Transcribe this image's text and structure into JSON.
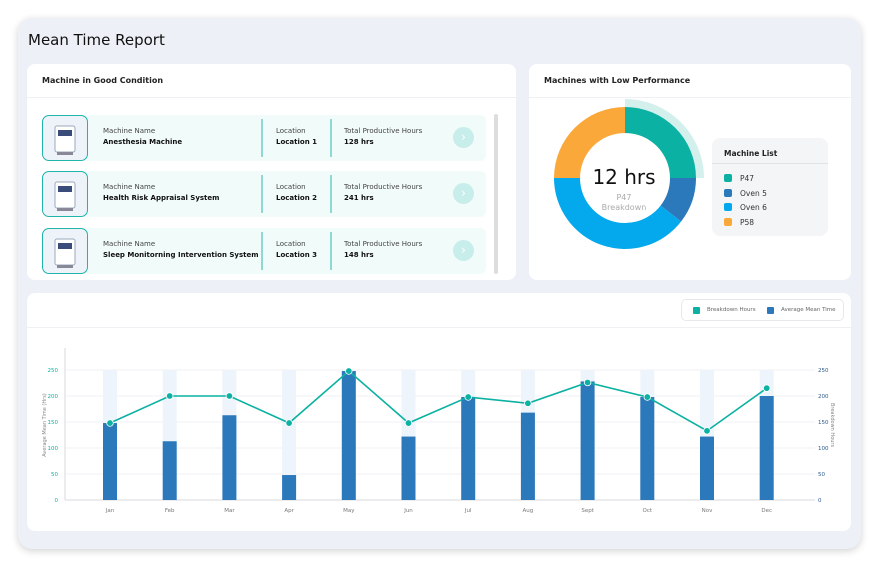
{
  "title": "Mean Time Report",
  "good": {
    "header": "Machine in Good Condition",
    "name_label": "Machine Name",
    "location_label": "Location",
    "hours_label": "Total Productive Hours",
    "items": [
      {
        "name": "Anesthesia Machine",
        "location": "Location 1",
        "hours": "128 hrs"
      },
      {
        "name": "Health Risk Appraisal System",
        "location": "Location 2",
        "hours": "241 hrs"
      },
      {
        "name": "Sleep Monitorning Intervention System",
        "location": "Location 3",
        "hours": "148 hrs"
      }
    ]
  },
  "low": {
    "header": "Machines with Low Performance",
    "center_value": "12 hrs",
    "center_sub1": "P47",
    "center_sub2": "Breakdown",
    "list_title": "Machine List",
    "slices": [
      {
        "name": "P47",
        "value": 25,
        "color": "#0bb1a2"
      },
      {
        "name": "Oven 5",
        "value": 10.5,
        "color": "#2b78bb"
      },
      {
        "name": "Oven 6",
        "value": 39.5,
        "color": "#03a9ec"
      },
      {
        "name": "P58",
        "value": 25,
        "color": "#fba83a"
      }
    ]
  },
  "chart_data": {
    "type": "bar+line",
    "categories": [
      "Jan",
      "Feb",
      "Mar",
      "Apr",
      "May",
      "Jun",
      "Jul",
      "Aug",
      "Sept",
      "Oct",
      "Nov",
      "Dec"
    ],
    "ylabel": "Average Mean Time (Hrs)",
    "y2label": "Breakdown Hours",
    "ylim": [
      0,
      250
    ],
    "y2lim": [
      0,
      250
    ],
    "yticks": [
      0,
      50,
      100,
      150,
      200,
      250
    ],
    "legend": [
      {
        "name": "Breakdown Hours",
        "color": "#0bb1a2"
      },
      {
        "name": "Average Mean Time",
        "color": "#2b78bb"
      }
    ],
    "series": [
      {
        "name": "Average Mean Time",
        "type": "bar",
        "color": "#2b78bb",
        "values": [
          148,
          113,
          163,
          48,
          248,
          122,
          198,
          168,
          228,
          198,
          122,
          200
        ]
      },
      {
        "name": "Breakdown Hours",
        "type": "line",
        "color": "#0bb1a2",
        "values": [
          148,
          200,
          200,
          148,
          248,
          148,
          198,
          186,
          226,
          198,
          133,
          215
        ]
      }
    ],
    "grid": true,
    "legend_position": "top-right"
  }
}
